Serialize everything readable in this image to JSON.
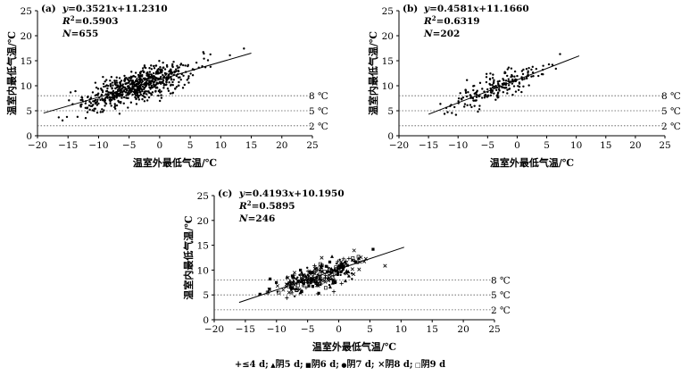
{
  "chart_data": [
    {
      "type": "scatter",
      "panel_label": "(a)",
      "equation_y": "y",
      "equation_rest": "=0.3521",
      "equation_x": "x",
      "equation_const": "+11.2310",
      "r2_label": "R",
      "r2_sup": "2",
      "r2_value": "=0.5903",
      "n_label": "N",
      "n_value": "=655",
      "xlabel": "温室外最低气温/℃",
      "ylabel": "温室内最低气温/℃",
      "xlim": [
        -20,
        25
      ],
      "ylim": [
        0,
        25
      ],
      "xticks": [
        "−20",
        "−15",
        "−10",
        "−5",
        "0",
        "5",
        "10",
        "15",
        "20",
        "25"
      ],
      "yticks": [
        "0",
        "5",
        "10",
        "15",
        "20",
        "25"
      ],
      "reference_lines": [
        {
          "y": 8,
          "label": "8 ℃"
        },
        {
          "y": 5,
          "label": "5 ℃"
        },
        {
          "y": 2,
          "label": "2 ℃"
        }
      ],
      "regression": {
        "slope": 0.3521,
        "intercept": 11.231,
        "x_range": [
          -19,
          15
        ]
      },
      "point_cloud": {
        "count": 655,
        "x_center": -3.5,
        "x_spread": 4.6,
        "x_min": -17,
        "x_max": 14,
        "resid_sd": 1.5,
        "markers": [
          "dot"
        ]
      }
    },
    {
      "type": "scatter",
      "panel_label": "(b)",
      "equation_y": "y",
      "equation_rest": "=0.4581",
      "equation_x": "x",
      "equation_const": "+11.1660",
      "r2_label": "R",
      "r2_sup": "2",
      "r2_value": "=0.6319",
      "n_label": "N",
      "n_value": "=202",
      "xlabel": "温室外最低气温/℃",
      "ylabel": "温室内最低气温/℃",
      "xlim": [
        -20,
        25
      ],
      "ylim": [
        0,
        25
      ],
      "xticks": [
        "−20",
        "−15",
        "−10",
        "−5",
        "0",
        "5",
        "10",
        "15",
        "20",
        "25"
      ],
      "yticks": [
        "0",
        "5",
        "10",
        "15",
        "20",
        "25"
      ],
      "reference_lines": [
        {
          "y": 8,
          "label": "8 ℃"
        },
        {
          "y": 5,
          "label": "5 ℃"
        },
        {
          "y": 2,
          "label": "2 ℃"
        }
      ],
      "regression": {
        "slope": 0.4581,
        "intercept": 11.166,
        "x_range": [
          -15,
          10.5
        ]
      },
      "point_cloud": {
        "count": 202,
        "x_center": -3.5,
        "x_spread": 3.8,
        "x_min": -13,
        "x_max": 10,
        "resid_sd": 1.3,
        "markers": [
          "dot"
        ]
      }
    },
    {
      "type": "scatter",
      "panel_label": "(c)",
      "equation_y": "y",
      "equation_rest": "=0.4193",
      "equation_x": "x",
      "equation_const": "+10.1950",
      "r2_label": "R",
      "r2_sup": "2",
      "r2_value": "=0.5895",
      "n_label": "N",
      "n_value": "=246",
      "xlabel": "温室外最低气温/℃",
      "ylabel": "温室内最低气温/℃",
      "xlim": [
        -20,
        25
      ],
      "ylim": [
        0,
        25
      ],
      "xticks": [
        "−20",
        "−15",
        "−10",
        "−5",
        "0",
        "5",
        "10",
        "15",
        "20",
        "25"
      ],
      "yticks": [
        "0",
        "5",
        "10",
        "15",
        "20",
        "25"
      ],
      "reference_lines": [
        {
          "y": 8,
          "label": "8 ℃"
        },
        {
          "y": 5,
          "label": "5 ℃"
        },
        {
          "y": 2,
          "label": "2 ℃"
        }
      ],
      "regression": {
        "slope": 0.4193,
        "intercept": 10.195,
        "x_range": [
          -16,
          10.5
        ]
      },
      "point_cloud": {
        "count": 246,
        "x_center": -3.0,
        "x_spread": 3.8,
        "x_min": -16,
        "x_max": 10,
        "resid_sd": 1.4,
        "markers": [
          "plus",
          "triangle",
          "square",
          "dot",
          "cross",
          "open-square"
        ]
      },
      "legend": [
        {
          "symbol": "+",
          "marker": "plus",
          "label": "≤4 d;"
        },
        {
          "symbol": "▲",
          "marker": "triangle",
          "label": "阴5 d;"
        },
        {
          "symbol": "■",
          "marker": "square",
          "label": "阴6 d;"
        },
        {
          "symbol": "●",
          "marker": "dot",
          "label": "阴7 d;"
        },
        {
          "symbol": "×",
          "marker": "cross",
          "label": "阴8 d;"
        },
        {
          "symbol": "□",
          "marker": "open-square",
          "label": "阴9 d"
        }
      ]
    }
  ]
}
